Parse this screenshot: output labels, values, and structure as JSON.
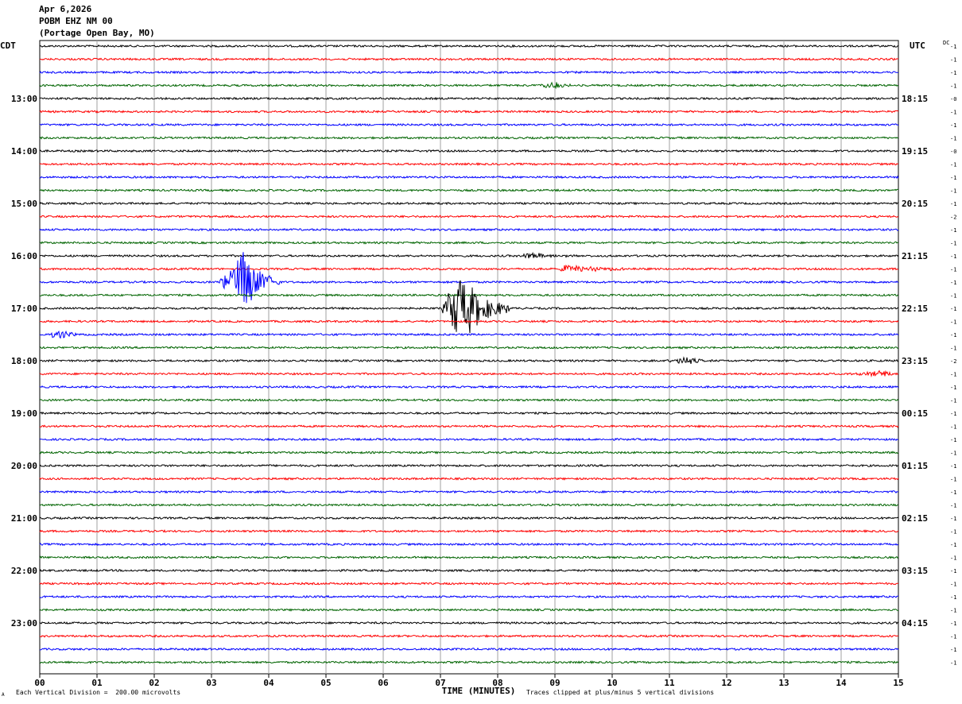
{
  "header": {
    "date": "Apr 6,2026",
    "station": "POBM EHZ NM 00",
    "location": "(Portage Open Bay, MO)"
  },
  "footer": {
    "scale_note": "Each Vertical Division =  200.00 microvolts",
    "clip_note": "Traces clipped at plus/minus 5 vertical divisions",
    "corner_mark": "A"
  },
  "colors": {
    "trace_cycle": [
      "#000000",
      "#ff0000",
      "#0000ff",
      "#006400"
    ],
    "grid": "#a0a0a0"
  },
  "chart_data": {
    "type": "line",
    "title": "POBM EHZ NM 00",
    "xlabel": "TIME (MINUTES)",
    "ylabel": "",
    "left_axis_label": "CDT",
    "right_axis_label": "UTC",
    "dc_label": "DC",
    "x_ticks": [
      "00",
      "01",
      "02",
      "03",
      "04",
      "05",
      "06",
      "07",
      "08",
      "09",
      "10",
      "11",
      "12",
      "13",
      "14",
      "15"
    ],
    "xlim": [
      0,
      15
    ],
    "left_hour_labels": [
      "13:00",
      "14:00",
      "15:00",
      "16:00",
      "17:00",
      "18:00",
      "19:00",
      "20:00",
      "21:00",
      "22:00",
      "23:00"
    ],
    "right_hour_labels": [
      "18:15",
      "19:15",
      "20:15",
      "21:15",
      "22:15",
      "23:15",
      "00:15",
      "01:15",
      "02:15",
      "03:15",
      "04:15"
    ],
    "trace_count": 48,
    "first_labeled_trace": 4,
    "dc_offsets": [
      "-1",
      "-1",
      "-1",
      "-1",
      "-0",
      "-1",
      "-1",
      "-1",
      "-0",
      "-1",
      "-1",
      "-1",
      "-1",
      "-2",
      "-1",
      "-1",
      "-1",
      "-1",
      "-1",
      "-1",
      "-1",
      "-1",
      "-1",
      "-1",
      "-2",
      "-1",
      "-1",
      "-1",
      "-1",
      "-1",
      "-1",
      "-1",
      "-1",
      "-1",
      "-1",
      "-1",
      "-1",
      "-1",
      "-1",
      "-1",
      "-1",
      "-1",
      "-1",
      "-1",
      "-1",
      "-1",
      "-1",
      "-1"
    ],
    "events": [
      {
        "trace": 18,
        "start_min": 3.1,
        "end_min": 4.2,
        "peak_min": 3.6,
        "amplitude_div": 2.8
      },
      {
        "trace": 20,
        "start_min": 7.0,
        "end_min": 8.2,
        "peak_min": 7.35,
        "amplitude_div": 3.5
      },
      {
        "trace": 22,
        "start_min": 0.1,
        "end_min": 0.8,
        "peak_min": 0.35,
        "amplitude_div": 0.5
      },
      {
        "trace": 24,
        "start_min": 10.8,
        "end_min": 11.9,
        "peak_min": 11.3,
        "amplitude_div": 0.35
      },
      {
        "trace": 17,
        "start_min": 9.0,
        "end_min": 11.2,
        "peak_min": 9.2,
        "amplitude_div": 0.35
      },
      {
        "trace": 16,
        "start_min": 8.4,
        "end_min": 10.0,
        "peak_min": 8.5,
        "amplitude_div": 0.3
      },
      {
        "trace": 3,
        "start_min": 8.6,
        "end_min": 9.6,
        "peak_min": 9.0,
        "amplitude_div": 0.3
      },
      {
        "trace": 25,
        "start_min": 14.0,
        "end_min": 15.0,
        "peak_min": 14.8,
        "amplitude_div": 0.35
      }
    ]
  }
}
